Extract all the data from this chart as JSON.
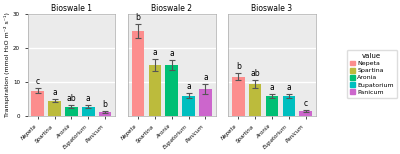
{
  "facets": [
    "Bioswale 1",
    "Bioswale 2",
    "Bioswale 3"
  ],
  "species": [
    "Nepeta",
    "Spartina",
    "Aronia",
    "Eupatorium",
    "Panicum"
  ],
  "colors": [
    "#FC8D8D",
    "#BCBB3C",
    "#00BF74",
    "#00BFBF",
    "#CC66CC"
  ],
  "values": [
    [
      7.5,
      4.5,
      2.8,
      2.8,
      1.2
    ],
    [
      25.0,
      15.0,
      15.0,
      6.0,
      8.0
    ],
    [
      11.5,
      9.5,
      6.0,
      6.0,
      1.5
    ]
  ],
  "errors": [
    [
      0.6,
      0.5,
      0.35,
      0.35,
      0.2
    ],
    [
      2.0,
      1.8,
      1.5,
      0.8,
      1.5
    ],
    [
      1.0,
      1.2,
      0.6,
      0.6,
      0.2
    ]
  ],
  "letters": [
    [
      "c",
      "a",
      "ab",
      "a",
      "b"
    ],
    [
      "b",
      "a",
      "a",
      "a",
      "a"
    ],
    [
      "b",
      "ab",
      "a",
      "a",
      "c"
    ]
  ],
  "ylabel": "Transpiration (mmol H₂O m⁻² s⁻¹)",
  "ylim": [
    0,
    30
  ],
  "yticks": [
    0,
    10,
    20,
    30
  ],
  "legend_title": "value",
  "legend_labels": [
    "Nepeta",
    "Spartina",
    "Aronia",
    "Eupatorium",
    "Panicum"
  ],
  "bg_color": "#FFFFFF",
  "panel_bg": "#EBEBEB",
  "grid_color": "#FFFFFF",
  "title_fontsize": 5.5,
  "letter_fontsize": 5.5,
  "tick_fontsize": 4.0,
  "label_fontsize": 4.5,
  "legend_fontsize": 4.5,
  "legend_title_fontsize": 5.0
}
